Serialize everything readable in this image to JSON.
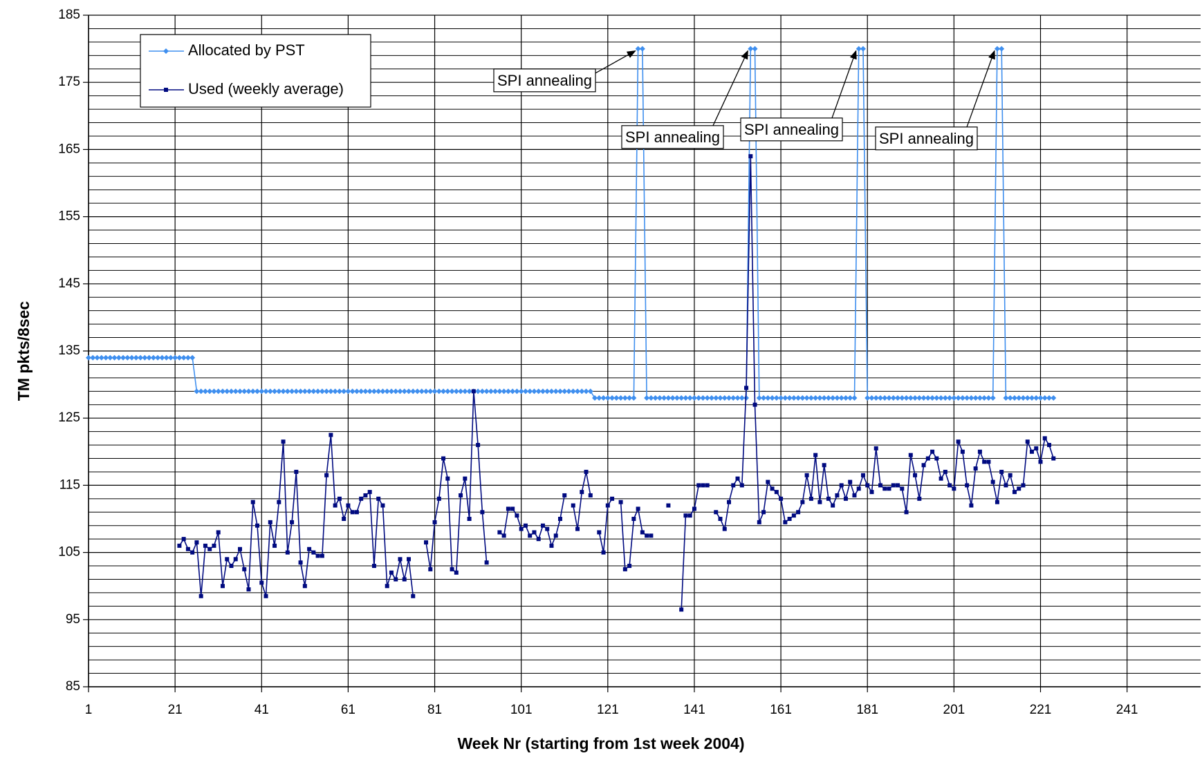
{
  "chart_data": {
    "type": "line",
    "y_label": "TM pkts/8sec",
    "x_label": "Week Nr (starting from 1st week 2004)",
    "xlim": [
      1,
      258
    ],
    "xticks": [
      1,
      21,
      41,
      61,
      81,
      101,
      121,
      141,
      161,
      181,
      201,
      221,
      241
    ],
    "ylim": [
      85,
      185
    ],
    "yticks": [
      85,
      95,
      105,
      115,
      125,
      135,
      145,
      155,
      165,
      175,
      185
    ],
    "yminorticks": [
      87,
      89,
      91,
      93,
      97,
      99,
      101,
      103,
      107,
      109,
      111,
      113,
      117,
      119,
      121,
      123,
      127,
      129,
      131,
      133,
      137,
      139,
      141,
      143,
      147,
      149,
      151,
      153,
      157,
      159,
      161,
      163,
      167,
      169,
      171,
      173,
      177,
      179,
      181,
      183
    ],
    "grid": true,
    "legend": "upper left",
    "annotations": [
      "SPI annealing",
      "SPI annealing",
      "SPI annealing",
      "SPI annealing"
    ],
    "x": [
      1,
      2,
      3,
      4,
      5,
      6,
      7,
      8,
      9,
      10,
      11,
      12,
      13,
      14,
      15,
      16,
      17,
      18,
      19,
      20,
      21,
      22,
      23,
      24,
      25,
      26,
      27,
      28,
      29,
      30,
      31,
      32,
      33,
      34,
      35,
      36,
      37,
      38,
      39,
      40,
      41,
      42,
      43,
      44,
      45,
      46,
      47,
      48,
      49,
      50,
      51,
      52,
      53,
      54,
      55,
      56,
      57,
      58,
      59,
      60,
      61,
      62,
      63,
      64,
      65,
      66,
      67,
      68,
      69,
      70,
      71,
      72,
      73,
      74,
      75,
      76,
      77,
      78,
      79,
      80,
      81,
      82,
      83,
      84,
      85,
      86,
      87,
      88,
      89,
      90,
      91,
      92,
      93,
      94,
      95,
      96,
      97,
      98,
      99,
      100,
      101,
      102,
      103,
      104,
      105,
      106,
      107,
      108,
      109,
      110,
      111,
      112,
      113,
      114,
      115,
      116,
      117,
      118,
      119,
      120,
      121,
      122,
      123,
      124,
      125,
      126,
      127,
      128,
      129,
      130,
      131,
      132,
      133,
      134,
      135,
      136,
      137,
      138,
      139,
      140,
      141,
      142,
      143,
      144,
      145,
      146,
      147,
      148,
      149,
      150,
      151,
      152,
      153,
      154,
      155,
      156,
      157,
      158,
      159,
      160,
      161,
      162,
      163,
      164,
      165,
      166,
      167,
      168,
      169,
      170,
      171,
      172,
      173,
      174,
      175,
      176,
      177,
      178,
      179,
      180,
      181,
      182,
      183,
      184,
      185,
      186,
      187,
      188,
      189,
      190,
      191,
      192,
      193,
      194,
      195,
      196,
      197,
      198,
      199,
      200,
      201,
      202,
      203,
      204,
      205,
      206,
      207,
      208,
      209,
      210,
      211,
      212,
      213,
      214,
      215,
      216,
      217,
      218,
      219,
      220,
      221,
      222,
      223,
      224
    ],
    "series": [
      {
        "name": "Allocated by PST",
        "color": "#3f8fef",
        "marker": "diamond",
        "values": [
          134,
          134,
          134,
          134,
          134,
          134,
          134,
          134,
          134,
          134,
          134,
          134,
          134,
          134,
          134,
          134,
          134,
          134,
          134,
          134,
          134,
          134,
          134,
          134,
          134,
          129,
          129,
          129,
          129,
          129,
          129,
          129,
          129,
          129,
          129,
          129,
          129,
          129,
          129,
          129,
          129,
          129,
          129,
          129,
          129,
          129,
          129,
          129,
          129,
          129,
          129,
          129,
          129,
          129,
          129,
          129,
          129,
          129,
          129,
          129,
          129,
          129,
          129,
          129,
          129,
          129,
          129,
          129,
          129,
          129,
          129,
          129,
          129,
          129,
          129,
          129,
          129,
          129,
          129,
          129,
          129,
          129,
          129,
          129,
          129,
          129,
          129,
          129,
          129,
          129,
          129,
          129,
          129,
          129,
          129,
          129,
          129,
          129,
          129,
          129,
          129,
          129,
          129,
          129,
          129,
          129,
          129,
          129,
          129,
          129,
          129,
          129,
          129,
          129,
          129,
          129,
          129,
          128,
          128,
          128,
          128,
          128,
          128,
          128,
          128,
          128,
          128,
          180,
          180,
          128,
          128,
          128,
          128,
          128,
          128,
          128,
          128,
          128,
          128,
          128,
          128,
          128,
          128,
          128,
          128,
          128,
          128,
          128,
          128,
          128,
          128,
          128,
          128,
          180,
          180,
          128,
          128,
          128,
          128,
          128,
          128,
          128,
          128,
          128,
          128,
          128,
          128,
          128,
          128,
          128,
          128,
          128,
          128,
          128,
          128,
          128,
          128,
          128,
          180,
          180,
          128,
          128,
          128,
          128,
          128,
          128,
          128,
          128,
          128,
          128,
          128,
          128,
          128,
          128,
          128,
          128,
          128,
          128,
          128,
          128,
          128,
          128,
          128,
          128,
          128,
          128,
          128,
          128,
          128,
          128,
          180,
          180,
          128,
          128,
          128,
          128,
          128,
          128,
          128,
          128,
          128,
          128,
          128,
          128
        ]
      },
      {
        "name": "Used (weekly average)",
        "color": "#000a80",
        "marker": "square",
        "values": [
          null,
          null,
          null,
          null,
          null,
          null,
          null,
          null,
          null,
          null,
          null,
          null,
          null,
          null,
          null,
          null,
          null,
          null,
          null,
          null,
          null,
          106,
          107,
          105.5,
          105,
          106.5,
          98.5,
          106,
          105.5,
          106,
          108,
          100,
          104,
          103,
          104,
          105.5,
          102.5,
          99.5,
          112.5,
          109,
          100.5,
          98.5,
          109.5,
          106,
          112.5,
          121.5,
          105,
          109.5,
          117,
          103.5,
          100,
          105.5,
          105,
          104.5,
          104.5,
          116.5,
          122.5,
          112,
          113,
          110,
          112,
          111,
          111,
          113,
          113.5,
          114,
          103,
          113,
          112,
          100,
          102,
          101,
          104,
          101,
          104,
          98.5,
          null,
          null,
          106.5,
          102.5,
          109.5,
          113,
          119,
          116,
          102.5,
          102,
          113.5,
          116,
          110,
          129,
          121,
          111,
          103.5,
          null,
          null,
          108,
          107.5,
          111.5,
          111.5,
          110.5,
          108.5,
          109,
          107.5,
          108,
          107,
          109,
          108.5,
          106,
          107.5,
          110,
          113.5,
          null,
          112,
          108.5,
          114,
          117,
          113.5,
          null,
          108,
          105,
          112,
          113,
          null,
          112.5,
          102.5,
          103,
          110,
          111.5,
          108,
          107.5,
          107.5,
          null,
          null,
          null,
          112,
          null,
          null,
          96.5,
          110.5,
          110.5,
          111.5,
          115,
          115,
          115,
          null,
          111,
          110,
          108.5,
          112.5,
          115,
          116,
          115,
          129.5,
          164,
          127,
          109.5,
          111,
          115.5,
          114.5,
          114,
          113,
          109.5,
          110,
          110.5,
          111,
          112.5,
          116.5,
          113,
          119.5,
          112.5,
          118,
          113,
          112,
          113.5,
          115,
          113,
          115.5,
          113.5,
          114.5,
          116.5,
          115,
          114,
          120.5,
          115,
          114.5,
          114.5,
          115,
          115,
          114.5,
          111,
          119.5,
          116.5,
          113,
          118,
          119,
          120,
          119,
          116,
          117,
          115,
          114.5,
          121.5,
          120,
          115,
          112,
          117.5,
          120,
          118.5,
          118.5,
          115.5,
          112.5,
          117,
          115,
          116.5,
          114,
          114.5,
          115,
          121.5,
          120,
          120.5,
          118.5,
          122,
          121,
          119
        ]
      }
    ]
  }
}
